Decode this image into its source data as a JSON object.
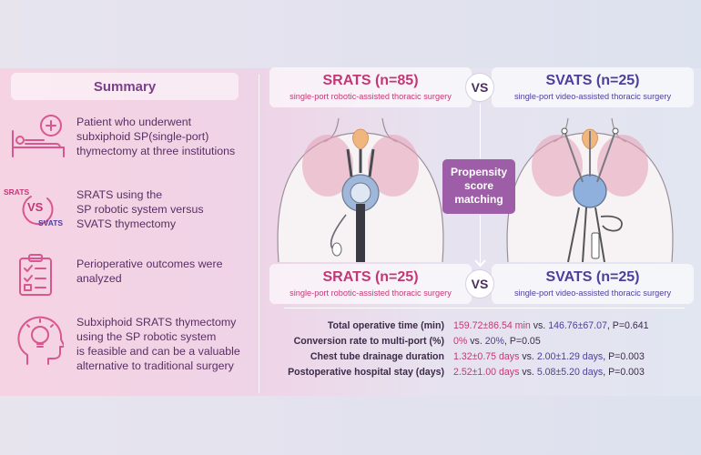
{
  "summary": {
    "title": "Summary",
    "items": [
      {
        "icon": "patient-bed-icon",
        "lines": [
          "Patient who underwent",
          "subxiphoid SP(single-port)",
          "thymectomy at three institutions"
        ]
      },
      {
        "icon": "srats-vs-svats-icon",
        "icon_labels": {
          "top": "SRATS",
          "mid": "VS",
          "bottom": "SVATS"
        },
        "lines": [
          "SRATS using the",
          "SP robotic system versus",
          "SVATS thymectomy"
        ]
      },
      {
        "icon": "clipboard-checklist-icon",
        "lines": [
          "Perioperative outcomes were",
          "analyzed"
        ]
      },
      {
        "icon": "head-lightbulb-icon",
        "lines": [
          "Subxiphoid SRATS thymectomy",
          "using the SP robotic system",
          "is feasible and can be a valuable",
          "alternative to traditional surgery"
        ]
      }
    ]
  },
  "comparison": {
    "top": {
      "srats": {
        "title": "SRATS (n=85)",
        "subtitle": "single-port robotic-assisted thoracic surgery"
      },
      "svats": {
        "title": "SVATS (n=25)",
        "subtitle": "single-port video-assisted thoracic surgery"
      },
      "vs": "VS"
    },
    "psm": [
      "Propensity",
      "score",
      "matching"
    ],
    "bottom": {
      "srats": {
        "title": "SRATS (n=25)",
        "subtitle": "single-port robotic-assisted thoracic surgery"
      },
      "svats": {
        "title": "SVATS (n=25)",
        "subtitle": "single-port video-assisted thoracic surgery"
      },
      "vs": "VS"
    }
  },
  "results": [
    {
      "label": "Total operative time (min)",
      "srats": "159.72±86.54 min",
      "mid": " vs. ",
      "svats": "146.76±67.07",
      "p": ", P=0.641"
    },
    {
      "label": "Conversion rate to multi-port (%)",
      "srats": "0%",
      "mid": " vs. ",
      "svats": "20%",
      "p": ", P=0.05"
    },
    {
      "label": "Chest tube drainage duration",
      "srats": "1.32±0.75 days",
      "mid": " vs. ",
      "svats": "2.00±1.29 days",
      "p": ", P=0.003"
    },
    {
      "label": "Postoperative hospital stay (days)",
      "srats": "2.52±1.00 days",
      "mid": " vs. ",
      "svats": "5.08±5.20 days",
      "p": ", P=0.003"
    }
  ],
  "colors": {
    "srats": "#c43776",
    "svats": "#4d3e9c",
    "summary": "#7b3f8c",
    "psm_box": "#9e5ea7"
  }
}
